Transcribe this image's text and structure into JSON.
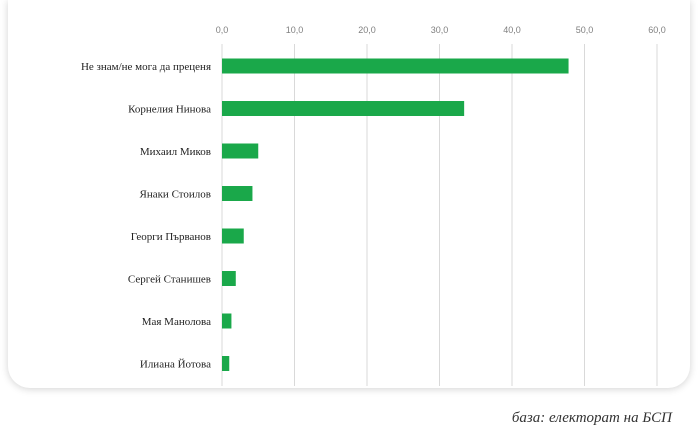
{
  "chart_data": {
    "type": "bar",
    "orientation": "horizontal",
    "categories": [
      "Не знам/не мога да преценя",
      "Корнелия Нинова",
      "Михаил Миков",
      "Янаки Стоилов",
      "Георги Първанов",
      "Сергей Станишев",
      "Мая Манолова",
      "Илиана Йотова"
    ],
    "values": [
      47.8,
      33.4,
      5.0,
      4.2,
      3.0,
      1.9,
      1.3,
      1.0
    ],
    "xlim": [
      0,
      60
    ],
    "xticks": [
      0,
      10,
      20,
      30,
      40,
      50,
      60
    ],
    "tick_labels": [
      "0,0",
      "10,0",
      "20,0",
      "30,0",
      "40,0",
      "50,0",
      "60,0"
    ],
    "x_axis_position": "top",
    "grid": true,
    "legend": "none",
    "bar_color": "#1aa84a",
    "grid_color": "#d9d9d9"
  },
  "footnote": "база: електорат на БСП"
}
